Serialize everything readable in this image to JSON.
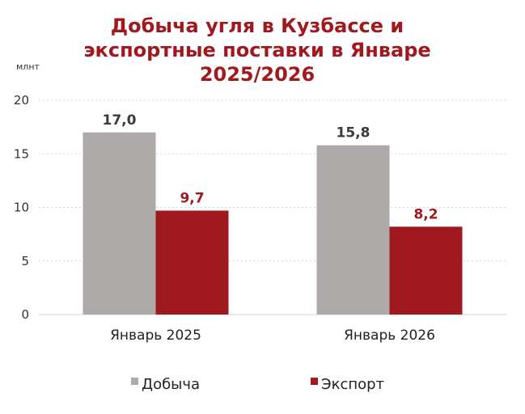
{
  "chart_data": {
    "type": "bar",
    "title": "Добыча угля в Кузбассе и экспортные поставки в Январе 2025/2026",
    "title_lines": [
      "Добыча угля в Кузбассе и",
      "экспортные поставки в Январе",
      "2025/2026"
    ],
    "ylabel": "млнт",
    "xlabel": "",
    "ylim": [
      0,
      20
    ],
    "yticks": [
      0,
      5,
      10,
      15,
      20
    ],
    "ytick_labels": [
      "0",
      "5",
      "10",
      "15",
      "20"
    ],
    "grid": true,
    "legend_position": "bottom",
    "categories": [
      "Январь 2025",
      "Январь 2026"
    ],
    "series": [
      {
        "name": "Добыча",
        "color": "#aeaaaa",
        "label_color": "#3b3b3b",
        "values": [
          17.0,
          15.8
        ],
        "labels": [
          "17,0",
          "15,8"
        ]
      },
      {
        "name": "Экспорт",
        "color": "#a0191e",
        "label_color": "#a0191e",
        "values": [
          9.7,
          8.2
        ],
        "labels": [
          "9,7",
          "8,2"
        ]
      }
    ]
  }
}
